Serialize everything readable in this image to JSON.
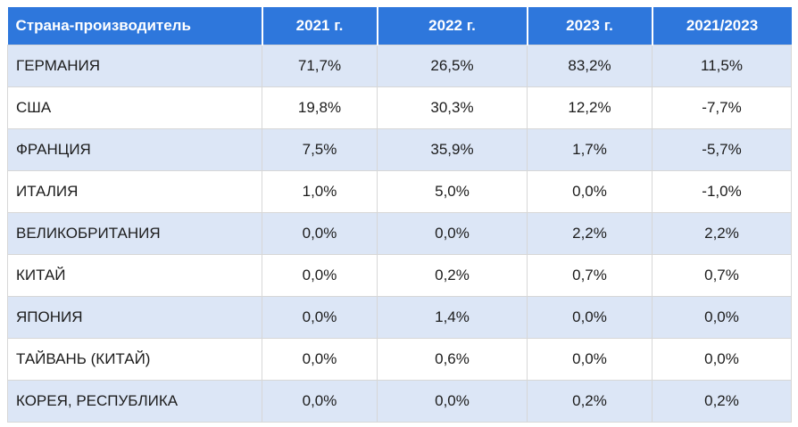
{
  "colors": {
    "header_bg": "#2e77dc",
    "header_text": "#ffffff",
    "row_alt_bg": "#dce6f6",
    "row_bg": "#ffffff",
    "grid_border": "#d7d7d7",
    "body_text": "#1c1c1c"
  },
  "chart_data": {
    "type": "table",
    "columns": [
      "Страна-производитель",
      "2021 г.",
      "2022 г.",
      "2023 г.",
      "2021/2023"
    ],
    "rows": [
      [
        "ГЕРМАНИЯ",
        "71,7%",
        "26,5%",
        "83,2%",
        "11,5%"
      ],
      [
        "США",
        "19,8%",
        "30,3%",
        "12,2%",
        "-7,7%"
      ],
      [
        "ФРАНЦИЯ",
        "7,5%",
        "35,9%",
        "1,7%",
        "-5,7%"
      ],
      [
        "ИТАЛИЯ",
        "1,0%",
        "5,0%",
        "0,0%",
        "-1,0%"
      ],
      [
        "ВЕЛИКОБРИТАНИЯ",
        "0,0%",
        "0,0%",
        "2,2%",
        "2,2%"
      ],
      [
        "КИТАЙ",
        "0,0%",
        "0,2%",
        "0,7%",
        "0,7%"
      ],
      [
        "ЯПОНИЯ",
        "0,0%",
        "1,4%",
        "0,0%",
        "0,0%"
      ],
      [
        "ТАЙВАНЬ (КИТАЙ)",
        "0,0%",
        "0,6%",
        "0,0%",
        "0,0%"
      ],
      [
        "КОРЕЯ, РЕСПУБЛИКА",
        "0,0%",
        "0,0%",
        "0,2%",
        "0,2%"
      ]
    ]
  }
}
